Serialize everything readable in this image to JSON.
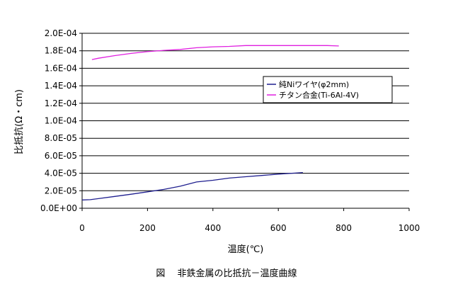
{
  "caption": "図　 非鉄金属の比抵抗－温度曲線",
  "chart_data": {
    "type": "line",
    "title": "",
    "xlabel": "温度(℃)",
    "ylabel": "比抵抗(Ω・cm)",
    "xlim": [
      0,
      1000
    ],
    "ylim": [
      0,
      0.0002
    ],
    "xticks": [
      0,
      200,
      400,
      600,
      800,
      1000
    ],
    "xtick_labels": [
      "0",
      "200",
      "400",
      "600",
      "800",
      "1000"
    ],
    "yticks": [
      0,
      2e-05,
      4e-05,
      6e-05,
      8e-05,
      0.0001,
      0.00012,
      0.00014,
      0.00016,
      0.00018,
      0.0002
    ],
    "ytick_labels": [
      "0.0E+00",
      "2.0E-05",
      "4.0E-05",
      "6.0E-05",
      "8.0E-05",
      "1.0E-04",
      "1.2E-04",
      "1.4E-04",
      "1.6E-04",
      "1.8E-04",
      "2.0E-04"
    ],
    "grid": "horizontal",
    "legend_position": "right",
    "series": [
      {
        "name": "純Niワイヤ(φ2mm)",
        "color": "#1f1f8f",
        "x": [
          0,
          25,
          50,
          100,
          150,
          200,
          250,
          300,
          350,
          400,
          450,
          500,
          550,
          600,
          650,
          675
        ],
        "y": [
          9.5e-06,
          9.8e-06,
          1.1e-05,
          1.35e-05,
          1.6e-05,
          1.88e-05,
          2.15e-05,
          2.52e-05,
          3e-05,
          3.2e-05,
          3.45e-05,
          3.6e-05,
          3.75e-05,
          3.9e-05,
          4.02e-05,
          4.08e-05
        ]
      },
      {
        "name": "チタン合金(Ti-6Al-4V)",
        "color": "#e020e0",
        "x": [
          30,
          50,
          100,
          150,
          200,
          250,
          300,
          350,
          400,
          450,
          500,
          550,
          600,
          650,
          700,
          750,
          785
        ],
        "y": [
          0.00017,
          0.0001715,
          0.0001745,
          0.000177,
          0.000179,
          0.0001805,
          0.0001815,
          0.0001835,
          0.0001845,
          0.000185,
          0.000186,
          0.000186,
          0.000186,
          0.000186,
          0.000186,
          0.000186,
          0.0001855
        ]
      }
    ]
  }
}
